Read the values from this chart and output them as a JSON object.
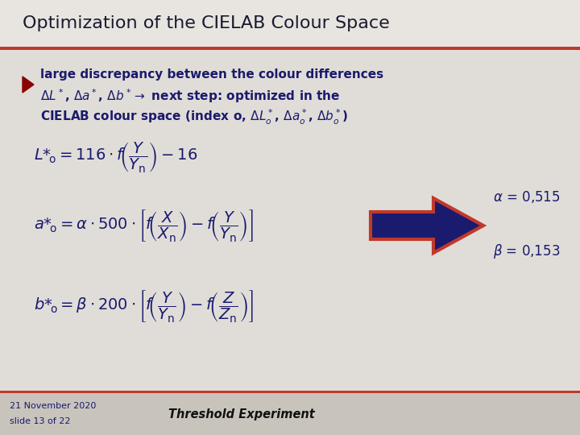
{
  "title": "Optimization of the CIELAB Colour Space",
  "title_color": "#1a1a2e",
  "title_fontsize": 16,
  "bg_color": "#e0ddd8",
  "header_bg_color": "#e8e5e0",
  "header_line_color": "#c0392b",
  "bullet_color": "#8b0000",
  "text_color": "#1a1a6e",
  "formula_color": "#1a1a6e",
  "arrow_fill_color": "#1a1a6e",
  "arrow_edge_color": "#c0392b",
  "footer_bg_color": "#c8c4bc",
  "footer_line_color": "#c0392b",
  "date_text": "21 November 2020",
  "slide_text": "slide 13 of 22",
  "footer_text": "Threshold Experiment"
}
